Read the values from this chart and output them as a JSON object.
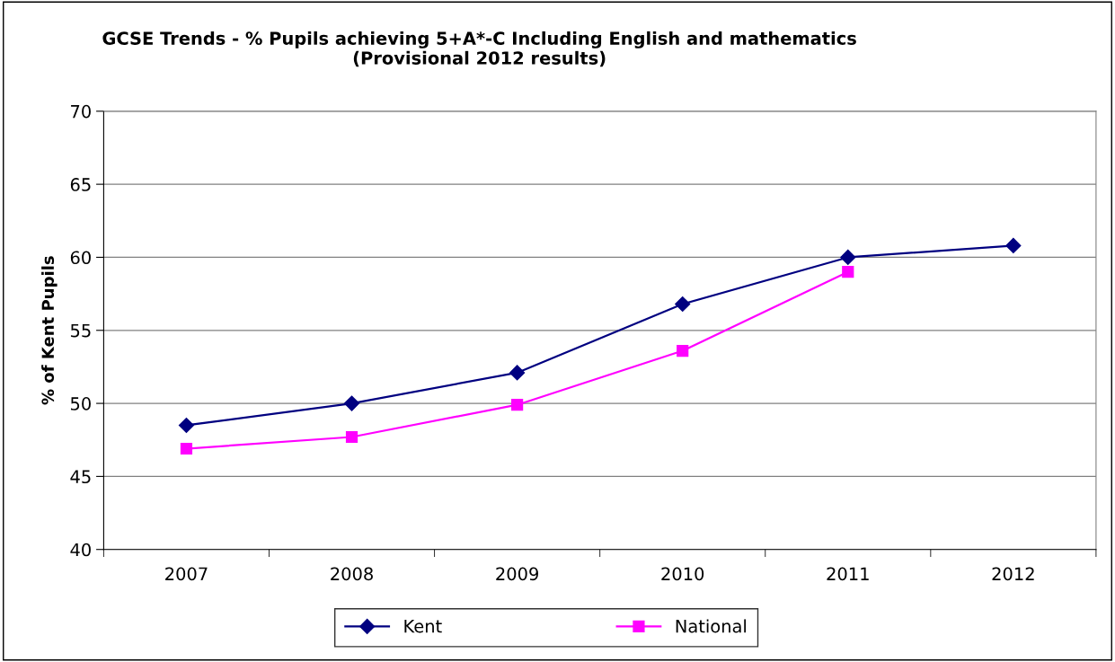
{
  "chart_data": {
    "type": "line",
    "title": "GCSE Trends - % Pupils achieving 5+A*-C Including English and mathematics\n(Provisional 2012 results)",
    "ylabel": "% of Kent Pupils",
    "categories": [
      "2007",
      "2008",
      "2009",
      "2010",
      "2011",
      "2012"
    ],
    "series": [
      {
        "name": "Kent",
        "color": "#000080",
        "marker": "diamond",
        "values": [
          48.5,
          50.0,
          52.1,
          56.8,
          60.0,
          60.8
        ]
      },
      {
        "name": "National",
        "color": "#ff00ff",
        "marker": "square",
        "values": [
          46.9,
          47.7,
          49.9,
          53.6,
          59.0,
          null
        ]
      }
    ],
    "ylim": [
      40,
      70
    ],
    "yticks": [
      40,
      45,
      50,
      55,
      60,
      65,
      70
    ],
    "grid": "y",
    "legend": "bottom",
    "line_style": "solid"
  }
}
